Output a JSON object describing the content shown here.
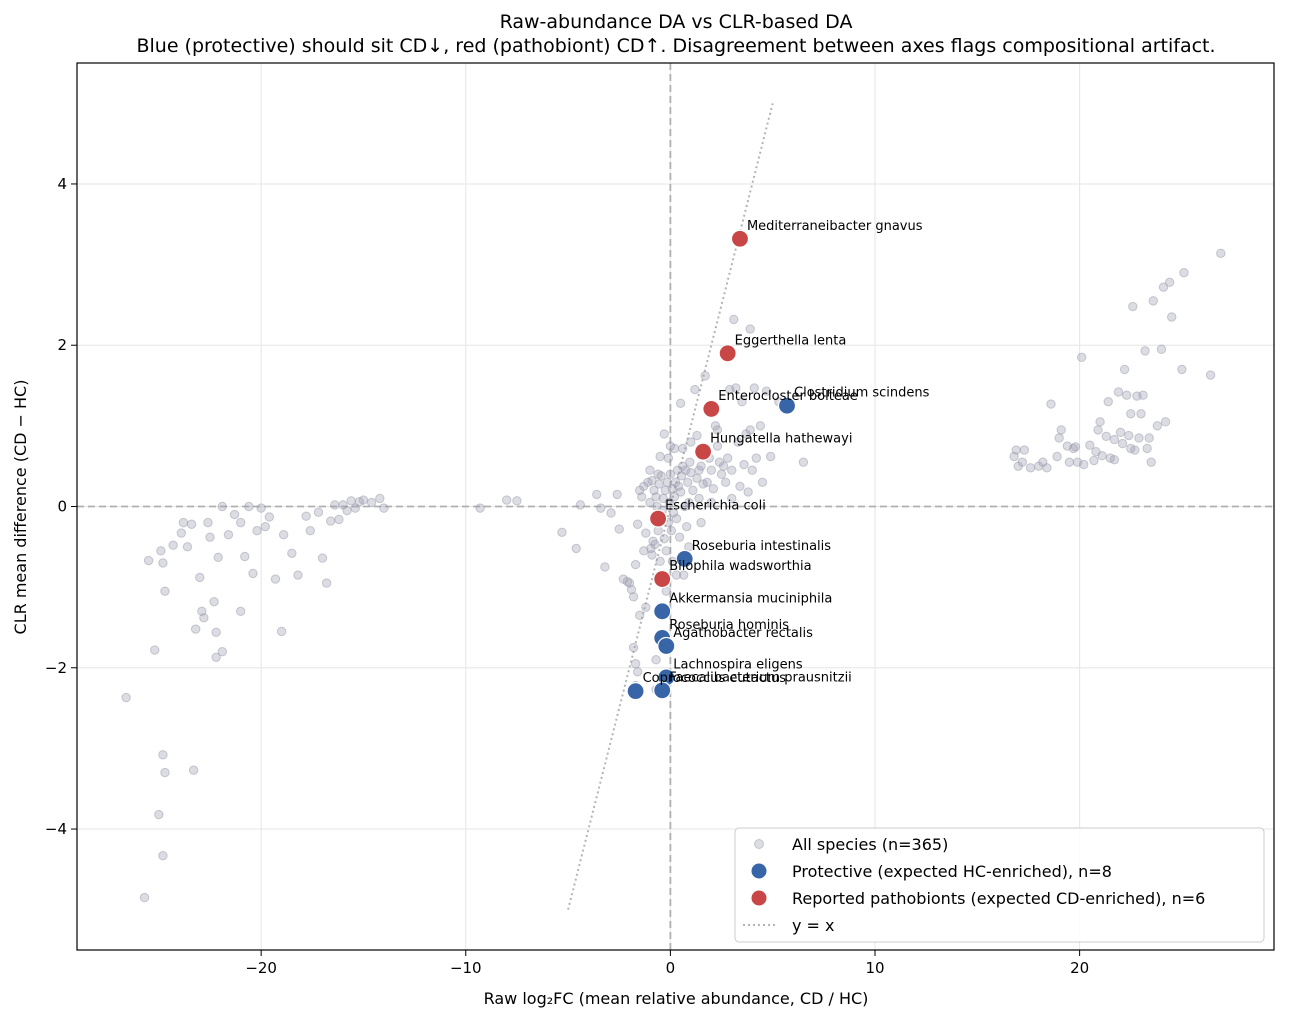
{
  "chart_data": {
    "type": "scatter",
    "title": "Raw-abundance DA vs CLR-based DA",
    "subtitle": "Blue (protective) should sit CD↓, red (pathobiont) CD↑. Disagreement between axes flags compositional artifact.",
    "xlabel": "Raw log₂FC (mean relative abundance, CD / HC)",
    "ylabel": "CLR mean difference (CD − HC)",
    "xlim": [
      -29,
      29.5
    ],
    "ylim": [
      -5.5,
      5.5
    ],
    "x_ticks": [
      -20,
      -10,
      0,
      10,
      20
    ],
    "x_tick_labels": [
      "−20",
      "−10",
      "0",
      "10",
      "20"
    ],
    "y_ticks": [
      -4,
      -2,
      0,
      2,
      4
    ],
    "y_tick_labels": [
      "−4",
      "−2",
      "0",
      "2",
      "4"
    ],
    "grid": true,
    "reference_lines": {
      "x": 0,
      "y": 0
    },
    "identity_line": {
      "x": [
        -5,
        5
      ],
      "y": [
        -5,
        5
      ]
    },
    "legend_position": "bottom-right",
    "legend": [
      {
        "key": "all",
        "label": "All species (n=365)"
      },
      {
        "key": "protective",
        "label": "Protective (expected HC-enriched), n=8"
      },
      {
        "key": "pathobiont",
        "label": "Reported pathobionts (expected CD-enriched), n=6"
      },
      {
        "key": "identity",
        "label": "y = x"
      }
    ],
    "colors": {
      "all": "#9a9aae",
      "protective": "#3765a8",
      "pathobiont": "#c84646",
      "identity": "#b4b4b4",
      "reference": "#b0b0b0"
    },
    "labeled_series": {
      "protective": [
        {
          "label": "Clostridium scindens",
          "x": 5.7,
          "y": 1.25
        },
        {
          "label": "Roseburia intestinalis",
          "x": 0.7,
          "y": -0.65
        },
        {
          "label": "Akkermansia muciniphila",
          "x": -0.4,
          "y": -1.3
        },
        {
          "label": "Roseburia hominis",
          "x": -0.4,
          "y": -1.63
        },
        {
          "label": "Agathobacter rectalis",
          "x": -0.2,
          "y": -1.73
        },
        {
          "label": "Lachnospira eligens",
          "x": -0.2,
          "y": -2.12
        },
        {
          "label": "Faecalibacterium prausnitzii",
          "x": -0.4,
          "y": -2.28
        },
        {
          "label": "Coprococcus eutactus",
          "x": -1.7,
          "y": -2.29
        }
      ],
      "pathobiont": [
        {
          "label": "Mediterraneibacter gnavus",
          "x": 3.4,
          "y": 3.32
        },
        {
          "label": "Eggerthella lenta",
          "x": 2.8,
          "y": 1.9
        },
        {
          "label": "Enterocloster bolteae",
          "x": 2.0,
          "y": 1.21
        },
        {
          "label": "Hungatella hathewayi",
          "x": 1.6,
          "y": 0.68
        },
        {
          "label": "Escherichia coli",
          "x": -0.6,
          "y": -0.15
        },
        {
          "label": "Bilophila wadsworthia",
          "x": -0.4,
          "y": -0.9
        }
      ]
    },
    "background_points": [
      [
        -26.6,
        -2.37
      ],
      [
        -25.7,
        -4.85
      ],
      [
        -25.5,
        -0.67
      ],
      [
        -25.2,
        -1.78
      ],
      [
        -25.0,
        -3.82
      ],
      [
        -24.8,
        -4.33
      ],
      [
        -24.8,
        -3.08
      ],
      [
        -24.7,
        -3.3
      ],
      [
        -24.8,
        -0.7
      ],
      [
        -24.9,
        -0.55
      ],
      [
        -24.7,
        -1.05
      ],
      [
        -24.3,
        -0.48
      ],
      [
        -23.8,
        -0.2
      ],
      [
        -23.6,
        -0.5
      ],
      [
        -23.4,
        -0.22
      ],
      [
        -23.2,
        -1.52
      ],
      [
        -23.3,
        -3.27
      ],
      [
        -23.0,
        -0.88
      ],
      [
        -22.9,
        -1.3
      ],
      [
        -22.8,
        -1.38
      ],
      [
        -22.6,
        -0.2
      ],
      [
        -22.5,
        -0.38
      ],
      [
        -22.3,
        -1.18
      ],
      [
        -22.2,
        -1.56
      ],
      [
        -22.2,
        -1.87
      ],
      [
        -21.9,
        -1.8
      ],
      [
        -21.6,
        -0.35
      ],
      [
        -21.3,
        -0.1
      ],
      [
        -21.0,
        -1.3
      ],
      [
        -21.0,
        -0.2
      ],
      [
        -20.8,
        -0.62
      ],
      [
        -20.6,
        0.0
      ],
      [
        -20.4,
        -0.83
      ],
      [
        -20.2,
        -0.3
      ],
      [
        -20.0,
        -0.02
      ],
      [
        -19.8,
        -0.25
      ],
      [
        -19.6,
        -0.13
      ],
      [
        -19.3,
        -0.9
      ],
      [
        -19.0,
        -1.55
      ],
      [
        -18.9,
        -0.35
      ],
      [
        -18.5,
        -0.58
      ],
      [
        -18.2,
        -0.85
      ],
      [
        -17.8,
        -0.12
      ],
      [
        -17.6,
        -0.3
      ],
      [
        -17.2,
        -0.07
      ],
      [
        -17.0,
        -0.64
      ],
      [
        -16.8,
        -0.95
      ],
      [
        -16.6,
        -0.18
      ],
      [
        -16.4,
        0.02
      ],
      [
        -16.2,
        -0.16
      ],
      [
        -16.0,
        0.02
      ],
      [
        -15.8,
        -0.05
      ],
      [
        -15.6,
        0.07
      ],
      [
        -15.4,
        -0.02
      ],
      [
        -15.2,
        0.06
      ],
      [
        -15.0,
        0.08
      ],
      [
        -14.6,
        0.05
      ],
      [
        -14.2,
        0.1
      ],
      [
        -14.0,
        -0.02
      ],
      [
        -23.9,
        -0.33
      ],
      [
        -22.1,
        -0.63
      ],
      [
        -21.9,
        0.0
      ],
      [
        -9.3,
        -0.02
      ],
      [
        -8.0,
        0.08
      ],
      [
        -7.5,
        0.07
      ],
      [
        -5.3,
        -0.32
      ],
      [
        -4.6,
        -0.52
      ],
      [
        -4.4,
        0.02
      ],
      [
        -3.6,
        0.15
      ],
      [
        -3.4,
        -0.02
      ],
      [
        -3.2,
        -0.75
      ],
      [
        -2.9,
        -0.08
      ],
      [
        -2.6,
        0.15
      ],
      [
        -2.5,
        -0.28
      ],
      [
        -2.3,
        -0.9
      ],
      [
        -2.1,
        -0.93
      ],
      [
        -1.9,
        -1.03
      ],
      [
        -1.8,
        -1.12
      ],
      [
        -1.6,
        -0.22
      ],
      [
        -1.5,
        0.2
      ],
      [
        -1.4,
        0.12
      ],
      [
        -1.3,
        0.25
      ],
      [
        -1.2,
        -0.33
      ],
      [
        -1.1,
        0.3
      ],
      [
        -1.0,
        0.05
      ],
      [
        -0.95,
        -0.52
      ],
      [
        -0.9,
        0.32
      ],
      [
        -0.85,
        -0.43
      ],
      [
        -0.8,
        0.2
      ],
      [
        -0.75,
        -0.47
      ],
      [
        -0.7,
        0.12
      ],
      [
        -0.65,
        0.0
      ],
      [
        -0.6,
        -0.3
      ],
      [
        -0.55,
        0.28
      ],
      [
        -0.5,
        -0.68
      ],
      [
        -0.45,
        0.38
      ],
      [
        -0.4,
        -0.12
      ],
      [
        -0.35,
        0.1
      ],
      [
        -0.3,
        -0.4
      ],
      [
        -0.25,
        0.2
      ],
      [
        -0.2,
        -0.55
      ],
      [
        -0.15,
        0.3
      ],
      [
        -0.1,
        -0.2
      ],
      [
        -0.05,
        0.05
      ],
      [
        0.0,
        0.4
      ],
      [
        0.05,
        -0.3
      ],
      [
        0.1,
        0.22
      ],
      [
        0.15,
        -0.08
      ],
      [
        0.2,
        0.12
      ],
      [
        0.25,
        0.3
      ],
      [
        0.3,
        -0.15
      ],
      [
        0.35,
        0.45
      ],
      [
        0.4,
        0.25
      ],
      [
        0.45,
        -0.38
      ],
      [
        0.5,
        0.18
      ],
      [
        0.55,
        0.38
      ],
      [
        0.6,
        0.5
      ],
      [
        0.65,
        -0.85
      ],
      [
        0.7,
        0.0
      ],
      [
        0.75,
        0.45
      ],
      [
        0.8,
        -0.25
      ],
      [
        0.85,
        0.3
      ],
      [
        0.9,
        0.05
      ],
      [
        0.95,
        0.55
      ],
      [
        1.0,
        0.42
      ],
      [
        1.1,
        0.2
      ],
      [
        1.2,
        1.45
      ],
      [
        1.3,
        0.35
      ],
      [
        1.4,
        0.1
      ],
      [
        1.5,
        0.5
      ],
      [
        1.6,
        0.28
      ],
      [
        1.7,
        1.62
      ],
      [
        1.8,
        0.3
      ],
      [
        1.9,
        0.6
      ],
      [
        2.0,
        0.45
      ],
      [
        2.1,
        0.22
      ],
      [
        2.2,
        1.0
      ],
      [
        2.3,
        0.75
      ],
      [
        2.4,
        0.55
      ],
      [
        2.5,
        0.4
      ],
      [
        2.6,
        0.5
      ],
      [
        2.7,
        0.3
      ],
      [
        2.8,
        0.6
      ],
      [
        2.9,
        1.45
      ],
      [
        3.0,
        0.45
      ],
      [
        3.1,
        2.32
      ],
      [
        3.2,
        1.47
      ],
      [
        3.3,
        0.8
      ],
      [
        3.4,
        0.25
      ],
      [
        3.5,
        1.3
      ],
      [
        3.6,
        0.52
      ],
      [
        3.7,
        0.9
      ],
      [
        3.8,
        0.18
      ],
      [
        3.9,
        2.2
      ],
      [
        4.0,
        0.45
      ],
      [
        4.1,
        1.47
      ],
      [
        4.2,
        0.6
      ],
      [
        4.4,
        1.0
      ],
      [
        4.7,
        1.43
      ],
      [
        4.9,
        0.62
      ],
      [
        5.3,
        1.3
      ],
      [
        6.5,
        0.55
      ],
      [
        -2.0,
        -0.95
      ],
      [
        -1.7,
        -0.72
      ],
      [
        -1.3,
        -0.55
      ],
      [
        -0.9,
        -0.6
      ],
      [
        -1.8,
        -1.75
      ],
      [
        -1.7,
        -1.95
      ],
      [
        -1.6,
        -2.05
      ],
      [
        -1.5,
        -1.35
      ],
      [
        -0.7,
        -1.9
      ],
      [
        -0.7,
        -2.27
      ],
      [
        -1.7,
        -2.22
      ],
      [
        0.3,
        -0.85
      ],
      [
        -0.2,
        -1.05
      ],
      [
        -0.5,
        -0.88
      ],
      [
        0.1,
        -0.68
      ],
      [
        -1.2,
        -1.25
      ],
      [
        0.2,
        0.72
      ],
      [
        -0.3,
        0.9
      ],
      [
        0.6,
        0.72
      ],
      [
        1.3,
        0.88
      ],
      [
        -0.6,
        0.4
      ],
      [
        0.0,
        0.75
      ],
      [
        -0.1,
        0.6
      ],
      [
        1.0,
        0.8
      ],
      [
        2.3,
        0.95
      ],
      [
        3.9,
        0.95
      ],
      [
        0.5,
        1.28
      ],
      [
        -0.5,
        0.62
      ],
      [
        1.5,
        -0.2
      ],
      [
        -0.4,
        -0.05
      ],
      [
        2.0,
        0.05
      ],
      [
        3.0,
        0.1
      ],
      [
        4.5,
        0.3
      ],
      [
        -1.0,
        0.45
      ],
      [
        0.9,
        -0.5
      ],
      [
        1.4,
        0.45
      ],
      [
        16.8,
        0.62
      ],
      [
        16.9,
        0.7
      ],
      [
        17.0,
        0.5
      ],
      [
        17.2,
        0.55
      ],
      [
        17.3,
        0.7
      ],
      [
        17.6,
        0.48
      ],
      [
        18.0,
        0.5
      ],
      [
        18.2,
        0.55
      ],
      [
        18.4,
        0.48
      ],
      [
        18.6,
        1.27
      ],
      [
        18.9,
        0.62
      ],
      [
        19.0,
        0.85
      ],
      [
        19.1,
        0.95
      ],
      [
        19.4,
        0.75
      ],
      [
        19.5,
        0.55
      ],
      [
        19.8,
        0.74
      ],
      [
        19.9,
        0.55
      ],
      [
        20.1,
        1.85
      ],
      [
        20.2,
        0.52
      ],
      [
        20.5,
        0.76
      ],
      [
        20.7,
        0.57
      ],
      [
        20.9,
        0.95
      ],
      [
        21.0,
        1.05
      ],
      [
        21.1,
        0.63
      ],
      [
        21.3,
        0.87
      ],
      [
        21.4,
        1.3
      ],
      [
        21.5,
        0.6
      ],
      [
        21.7,
        0.83
      ],
      [
        21.9,
        1.42
      ],
      [
        22.1,
        0.78
      ],
      [
        22.2,
        1.7
      ],
      [
        22.3,
        1.38
      ],
      [
        22.4,
        0.88
      ],
      [
        22.5,
        1.15
      ],
      [
        22.6,
        2.48
      ],
      [
        22.7,
        0.7
      ],
      [
        22.8,
        1.37
      ],
      [
        22.9,
        0.85
      ],
      [
        23.1,
        1.38
      ],
      [
        23.2,
        1.93
      ],
      [
        23.3,
        0.72
      ],
      [
        23.4,
        0.85
      ],
      [
        23.5,
        0.55
      ],
      [
        23.6,
        2.55
      ],
      [
        23.8,
        1.0
      ],
      [
        24.0,
        1.95
      ],
      [
        24.1,
        2.72
      ],
      [
        24.2,
        1.05
      ],
      [
        24.4,
        2.78
      ],
      [
        24.5,
        2.35
      ],
      [
        25.0,
        1.7
      ],
      [
        25.1,
        2.9
      ],
      [
        26.4,
        1.63
      ],
      [
        26.9,
        3.14
      ],
      [
        22.5,
        0.72
      ],
      [
        21.7,
        0.58
      ],
      [
        20.8,
        0.68
      ],
      [
        19.7,
        0.72
      ],
      [
        22.0,
        0.92
      ],
      [
        23.0,
        1.15
      ]
    ]
  }
}
